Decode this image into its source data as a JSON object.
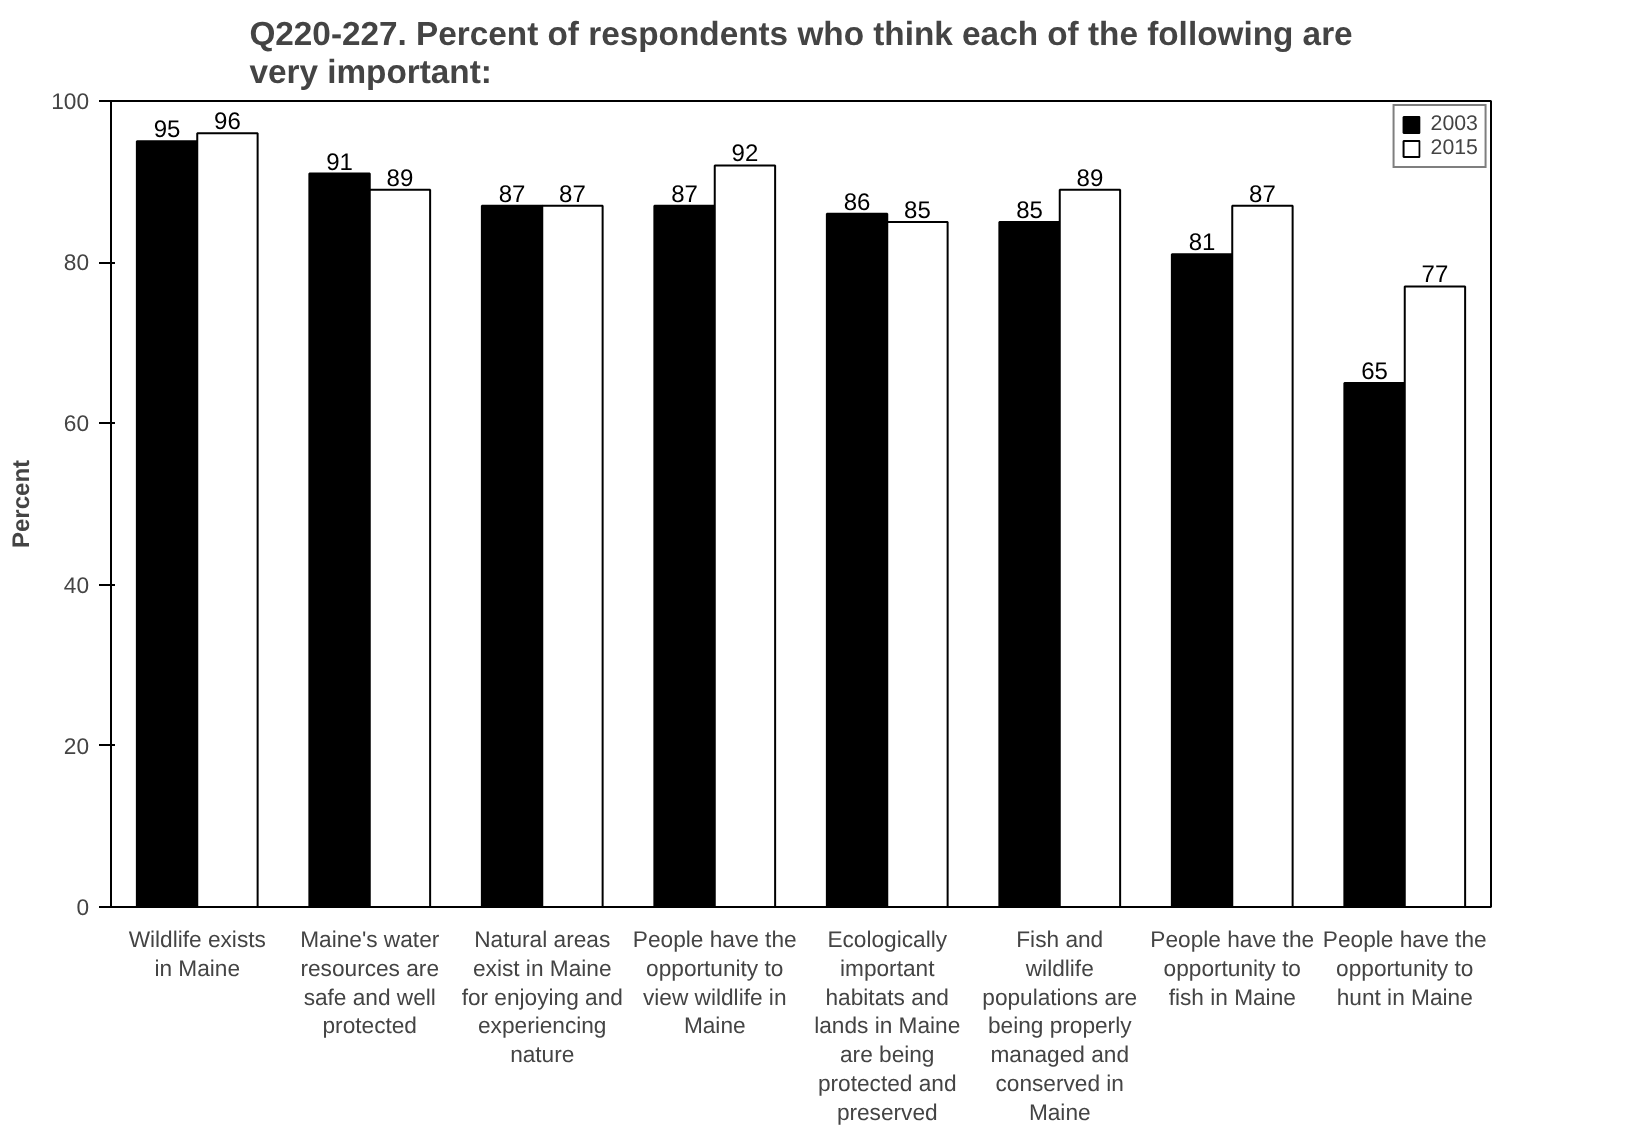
{
  "chart_data": {
    "type": "bar",
    "title": "Q220-227. Percent of respondents who think each of the following are very important:",
    "ylabel": "Percent",
    "categories": [
      "Wildlife exists in Maine",
      "Maine's water resources are safe and well protected",
      "Natural areas exist in Maine for enjoying and experiencing nature",
      "People have the opportunity to view wildlife in Maine",
      "Ecologically important habitats and lands in Maine are being protected and preserved",
      "Fish and wildlife populations are being properly managed and conserved in Maine",
      "People have the opportunity to fish in Maine",
      "People have the opportunity to hunt in Maine"
    ],
    "series": [
      {
        "name": "2003",
        "color": "#000000",
        "values": [
          95,
          91,
          87,
          87,
          86,
          85,
          81,
          65
        ]
      },
      {
        "name": "2015",
        "color": "#ffffff",
        "values": [
          96,
          89,
          87,
          92,
          85,
          89,
          87,
          77
        ]
      }
    ],
    "ylim": [
      0,
      100
    ],
    "yticks": [
      0,
      20,
      40,
      60,
      80,
      100
    ],
    "grid": false,
    "legend": "top right",
    "data_labels": true
  }
}
